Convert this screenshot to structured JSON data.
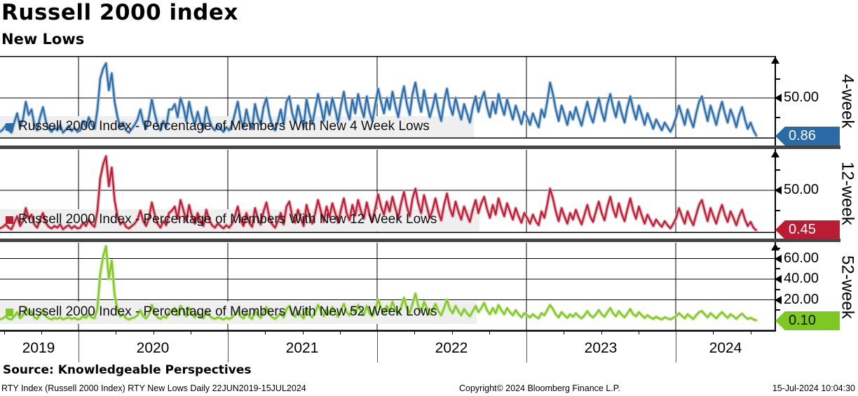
{
  "header": {
    "title": "Russell 2000 index",
    "subtitle": "New Lows"
  },
  "footer": {
    "source": "Source: Knowledgeable Perspectives",
    "left": "RTY Index (Russell 2000 Index) RTY New Lows  Daily 22JUN2019-15JUL2024",
    "center": "Copyright© 2024 Bloomberg Finance L.P.",
    "right": "15-Jul-2024 10:04:30"
  },
  "chart_data": {
    "type": "line",
    "title": "Russell 2000 index",
    "subtitle": "New Lows",
    "x_start": "22JUN2019",
    "x_end": "15JUL2024",
    "periodicity": "Daily",
    "sampling_note": "values below are weekly-sampled estimates read from the plot",
    "grid": true,
    "legend_position": "bottom-left inside each panel",
    "x_axis_year_labels": [
      "2019",
      "2020",
      "2021",
      "2022",
      "2023",
      "2024"
    ],
    "panels": [
      {
        "name": "4-week",
        "legend": "Russell 2000 Index - Percentage of Members With New 4 Week Lows",
        "color": "#2a6ba6",
        "halo_color": "#9dbdda",
        "tag_text_color": "#ffffff",
        "last_value": "0.86",
        "y_ticks": [
          "50.00"
        ],
        "ylim": [
          0,
          100
        ],
        "values": [
          6,
          9,
          14,
          8,
          5,
          18,
          30,
          12,
          22,
          45,
          28,
          35,
          15,
          8,
          25,
          38,
          20,
          10,
          6,
          12,
          8,
          15,
          5,
          9,
          14,
          7,
          11,
          6,
          8,
          20,
          12,
          25,
          15,
          10,
          35,
          75,
          88,
          95,
          60,
          82,
          45,
          25,
          12,
          18,
          8,
          5,
          10,
          15,
          22,
          35,
          18,
          10,
          25,
          48,
          30,
          15,
          8,
          20,
          12,
          35,
          35,
          42,
          25,
          50,
          38,
          20,
          45,
          28,
          15,
          32,
          18,
          10,
          38,
          22,
          12,
          8,
          15,
          10,
          6,
          12,
          8,
          15,
          30,
          45,
          22,
          12,
          35,
          18,
          10,
          42,
          25,
          15,
          38,
          50,
          28,
          14,
          8,
          20,
          35,
          15,
          45,
          52,
          30,
          18,
          40,
          25,
          12,
          48,
          30,
          16,
          36,
          55,
          38,
          20,
          45,
          28,
          50,
          35,
          18,
          40,
          58,
          35,
          22,
          48,
          30,
          55,
          38,
          25,
          52,
          32,
          20,
          42,
          62,
          45,
          30,
          50,
          35,
          58,
          40,
          25,
          48,
          65,
          42,
          28,
          55,
          70,
          48,
          32,
          60,
          42,
          25,
          38,
          55,
          35,
          20,
          45,
          62,
          40,
          28,
          50,
          35,
          22,
          42,
          30,
          18,
          38,
          52,
          32,
          48,
          58,
          38,
          25,
          45,
          30,
          55,
          40,
          28,
          48,
          35,
          22,
          40,
          28,
          16,
          32,
          25,
          15,
          30,
          20,
          12,
          35,
          25,
          45,
          70,
          55,
          35,
          20,
          40,
          28,
          15,
          32,
          22,
          38,
          25,
          14,
          30,
          45,
          28,
          18,
          35,
          50,
          32,
          20,
          42,
          55,
          38,
          25,
          45,
          30,
          18,
          38,
          52,
          35,
          22,
          40,
          28,
          15,
          30,
          20,
          10,
          22,
          15,
          8,
          18,
          12,
          6,
          14,
          25,
          40,
          28,
          15,
          35,
          22,
          12,
          30,
          45,
          52,
          35,
          20,
          40,
          28,
          15,
          32,
          45,
          30,
          18,
          35,
          25,
          12,
          28,
          38,
          22,
          10,
          18,
          8,
          0.86
        ]
      },
      {
        "name": "12-week",
        "legend": "Russell 2000 Index - Percentage of Members With New 12 Week Lows",
        "color": "#bb1b33",
        "halo_color": "#dd9ba6",
        "tag_text_color": "#ffffff",
        "last_value": "0.45",
        "y_ticks": [
          "50.00"
        ],
        "ylim": [
          0,
          100
        ],
        "values": [
          3,
          5,
          8,
          4,
          2,
          10,
          18,
          6,
          12,
          28,
          15,
          20,
          8,
          4,
          14,
          22,
          10,
          5,
          3,
          6,
          4,
          8,
          2,
          5,
          7,
          3,
          6,
          3,
          4,
          10,
          6,
          14,
          8,
          5,
          25,
          65,
          82,
          92,
          55,
          78,
          38,
          18,
          8,
          12,
          5,
          3,
          6,
          9,
          14,
          25,
          12,
          6,
          16,
          35,
          20,
          9,
          4,
          12,
          7,
          22,
          25,
          30,
          15,
          38,
          26,
          12,
          32,
          18,
          9,
          22,
          11,
          6,
          26,
          14,
          7,
          4,
          9,
          6,
          3,
          7,
          4,
          9,
          18,
          30,
          13,
          6,
          22,
          10,
          5,
          28,
          15,
          8,
          24,
          35,
          17,
          8,
          4,
          12,
          22,
          8,
          30,
          36,
          18,
          10,
          26,
          15,
          6,
          32,
          18,
          9,
          22,
          38,
          24,
          11,
          30,
          17,
          34,
          22,
          10,
          26,
          40,
          22,
          13,
          32,
          19,
          38,
          24,
          15,
          35,
          20,
          12,
          28,
          45,
          30,
          20,
          36,
          24,
          42,
          28,
          16,
          34,
          48,
          30,
          18,
          40,
          52,
          34,
          22,
          44,
          30,
          16,
          26,
          40,
          24,
          13,
          32,
          46,
          28,
          18,
          36,
          24,
          14,
          30,
          20,
          11,
          26,
          38,
          22,
          34,
          42,
          27,
          16,
          32,
          20,
          40,
          28,
          18,
          34,
          24,
          14,
          28,
          18,
          10,
          22,
          16,
          9,
          20,
          12,
          7,
          24,
          16,
          32,
          52,
          40,
          24,
          12,
          28,
          18,
          9,
          22,
          14,
          26,
          16,
          8,
          20,
          32,
          18,
          11,
          24,
          36,
          22,
          13,
          30,
          42,
          27,
          17,
          34,
          21,
          12,
          27,
          40,
          25,
          15,
          30,
          19,
          9,
          20,
          13,
          6,
          14,
          9,
          5,
          12,
          7,
          3,
          9,
          16,
          28,
          18,
          9,
          24,
          14,
          7,
          20,
          32,
          38,
          24,
          12,
          28,
          18,
          9,
          22,
          32,
          20,
          11,
          24,
          16,
          7,
          18,
          26,
          14,
          6,
          11,
          4,
          0.45
        ]
      },
      {
        "name": "52-week",
        "legend": "Russell 2000 Index - Percentage of Members With New 52 Week Lows",
        "color": "#7dc821",
        "halo_color": "#c2e494",
        "tag_text_color": "#111111",
        "last_value": "0.10",
        "y_ticks": [
          "60.00",
          "40.00",
          "20.00"
        ],
        "ylim": [
          0,
          85
        ],
        "values": [
          1,
          2,
          4,
          1.5,
          1,
          4,
          8,
          2,
          5,
          12,
          6,
          9,
          3,
          1.5,
          6,
          10,
          4,
          2,
          1,
          2.5,
          1.5,
          3,
          1,
          2,
          3,
          1.5,
          2.5,
          1,
          1.5,
          4,
          2.5,
          6,
          3,
          2,
          12,
          45,
          62,
          72,
          40,
          58,
          25,
          10,
          4,
          6,
          2,
          1,
          2,
          3,
          5,
          10,
          4,
          2,
          6,
          15,
          8,
          3,
          1.5,
          4,
          2.5,
          8,
          9,
          12,
          5,
          14,
          10,
          4,
          12,
          6,
          3,
          8,
          4,
          2,
          9,
          5,
          2.5,
          1.5,
          3,
          2,
          1,
          2.5,
          1.5,
          3,
          6,
          10,
          4,
          2,
          8,
          3.5,
          1.5,
          10,
          5,
          2.5,
          8,
          13,
          6,
          3,
          1.5,
          4,
          8,
          3,
          11,
          14,
          6,
          3.5,
          9,
          5,
          2,
          12,
          6,
          3,
          8,
          15,
          9,
          4,
          11,
          6,
          13,
          8,
          3.5,
          10,
          16,
          8,
          5,
          12,
          7,
          15,
          9,
          5.5,
          14,
          7,
          4,
          10,
          20,
          12,
          7,
          14,
          9,
          18,
          11,
          6,
          13,
          22,
          12,
          7,
          16,
          26,
          14,
          8,
          18,
          12,
          6,
          10,
          16,
          9,
          5,
          12,
          20,
          11,
          7,
          14,
          9,
          5,
          11,
          7,
          4,
          9,
          14,
          8,
          12,
          17,
          10,
          6,
          12,
          7,
          15,
          10,
          6,
          12,
          8,
          5,
          10,
          6,
          3,
          7,
          5,
          3,
          6,
          3.5,
          2,
          7,
          5,
          10,
          15,
          11,
          6,
          3,
          8,
          5,
          2.5,
          6,
          3.5,
          7,
          4,
          2,
          5,
          9,
          5,
          3,
          6,
          10,
          6,
          3.5,
          8,
          12,
          7,
          4,
          9,
          5.5,
          3,
          7,
          11,
          6,
          4,
          8,
          5,
          2.5,
          5,
          3,
          1.5,
          3.5,
          2,
          1,
          3,
          2,
          1,
          2.5,
          4,
          7,
          4.5,
          2,
          6,
          3.5,
          1.5,
          5,
          8,
          9,
          6,
          3,
          7,
          4.5,
          2,
          5.5,
          8,
          5,
          2.5,
          6,
          4,
          1.5,
          4.5,
          6.5,
          3.5,
          1.5,
          2.5,
          1,
          0.1
        ]
      }
    ]
  }
}
